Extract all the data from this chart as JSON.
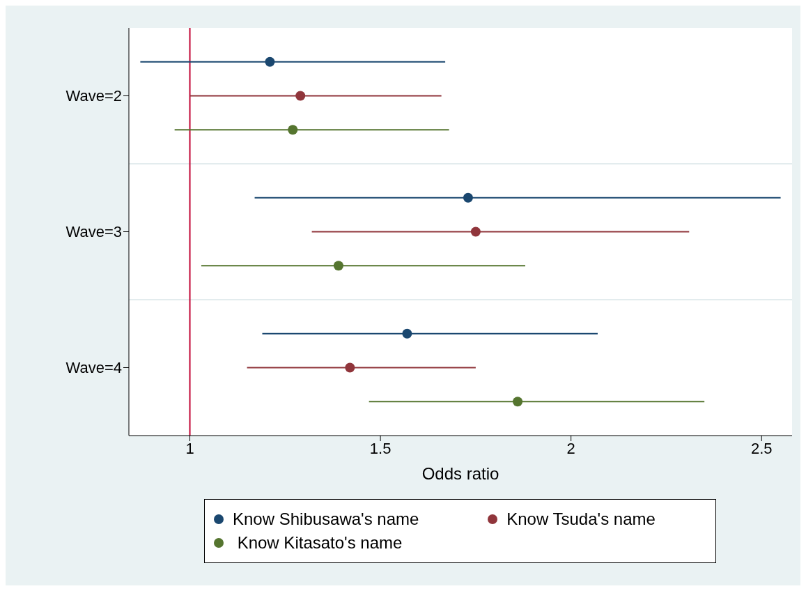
{
  "chart_data": {
    "type": "scatter",
    "orientation": "horizontal",
    "xlabel": "Odds ratio",
    "categories": [
      "Wave=2",
      "Wave=3",
      "Wave=4"
    ],
    "xlim": [
      0.84,
      2.58
    ],
    "xticks": [
      1,
      1.5,
      2,
      2.5
    ],
    "grid": "y",
    "legend": "bottom",
    "marker": "circle",
    "ref_lines": [
      {
        "axis": "x",
        "value": 1,
        "color": "#c10534"
      }
    ],
    "series": [
      {
        "name": "Know Shibusawa's name",
        "color": "#1a476f",
        "values": [
          1.21,
          1.73,
          1.57
        ],
        "errors": [
          [
            0.87,
            1.67
          ],
          [
            1.17,
            2.55
          ],
          [
            1.19,
            2.07
          ]
        ]
      },
      {
        "name": "Know Tsuda's name",
        "color": "#90353b",
        "values": [
          1.29,
          1.75,
          1.42
        ],
        "errors": [
          [
            1.0,
            1.66
          ],
          [
            1.32,
            2.31
          ],
          [
            1.15,
            1.75
          ]
        ]
      },
      {
        "name": " Know Kitasato's name",
        "color": "#55752f",
        "values": [
          1.27,
          1.39,
          1.86
        ],
        "errors": [
          [
            0.96,
            1.68
          ],
          [
            1.03,
            1.88
          ],
          [
            1.47,
            2.35
          ]
        ]
      }
    ]
  }
}
